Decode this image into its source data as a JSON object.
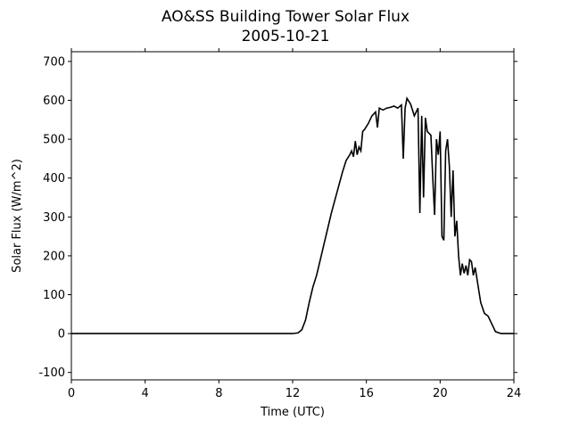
{
  "chart_data": {
    "type": "line",
    "title": "AO&SS Building Tower Solar Flux",
    "subtitle": "2005-10-21",
    "x_label": "Time (UTC)",
    "y_label": "Solar Flux (W/m^2)",
    "xlim": [
      0,
      24
    ],
    "xticks": [
      0,
      4,
      8,
      12,
      16,
      20,
      24
    ],
    "ylim": [
      -119,
      725
    ],
    "yticks": [
      -100,
      0,
      100,
      200,
      300,
      400,
      500,
      600,
      700
    ],
    "series": [
      {
        "name": "Solar Flux",
        "color": "#000000",
        "x": [
          0,
          12,
          12.3,
          12.5,
          12.7,
          12.9,
          13.1,
          13.3,
          13.5,
          13.7,
          13.9,
          14.1,
          14.3,
          14.5,
          14.7,
          14.9,
          15.1,
          15.2,
          15.3,
          15.4,
          15.5,
          15.6,
          15.7,
          15.8,
          15.9,
          16.1,
          16.3,
          16.5,
          16.6,
          16.7,
          16.9,
          17.1,
          17.3,
          17.5,
          17.7,
          17.9,
          18.0,
          18.1,
          18.2,
          18.4,
          18.6,
          18.8,
          18.9,
          19.0,
          19.1,
          19.2,
          19.3,
          19.5,
          19.6,
          19.7,
          19.8,
          19.9,
          20.0,
          20.1,
          20.2,
          20.3,
          20.4,
          20.5,
          20.6,
          20.7,
          20.8,
          20.9,
          21.0,
          21.1,
          21.2,
          21.3,
          21.4,
          21.5,
          21.6,
          21.7,
          21.8,
          21.9,
          22.0,
          22.2,
          22.4,
          22.6,
          22.8,
          23.0,
          23.3,
          24
        ],
        "values": [
          0,
          0,
          2,
          10,
          35,
          80,
          120,
          150,
          190,
          230,
          270,
          310,
          345,
          380,
          415,
          445,
          460,
          470,
          455,
          495,
          460,
          480,
          470,
          520,
          525,
          540,
          560,
          570,
          530,
          580,
          575,
          580,
          582,
          585,
          580,
          588,
          450,
          580,
          605,
          590,
          560,
          580,
          310,
          560,
          350,
          555,
          520,
          510,
          400,
          305,
          500,
          460,
          520,
          250,
          240,
          470,
          500,
          430,
          300,
          420,
          250,
          290,
          200,
          150,
          180,
          155,
          175,
          150,
          190,
          185,
          150,
          170,
          140,
          80,
          52,
          45,
          25,
          5,
          0,
          0
        ]
      }
    ]
  }
}
